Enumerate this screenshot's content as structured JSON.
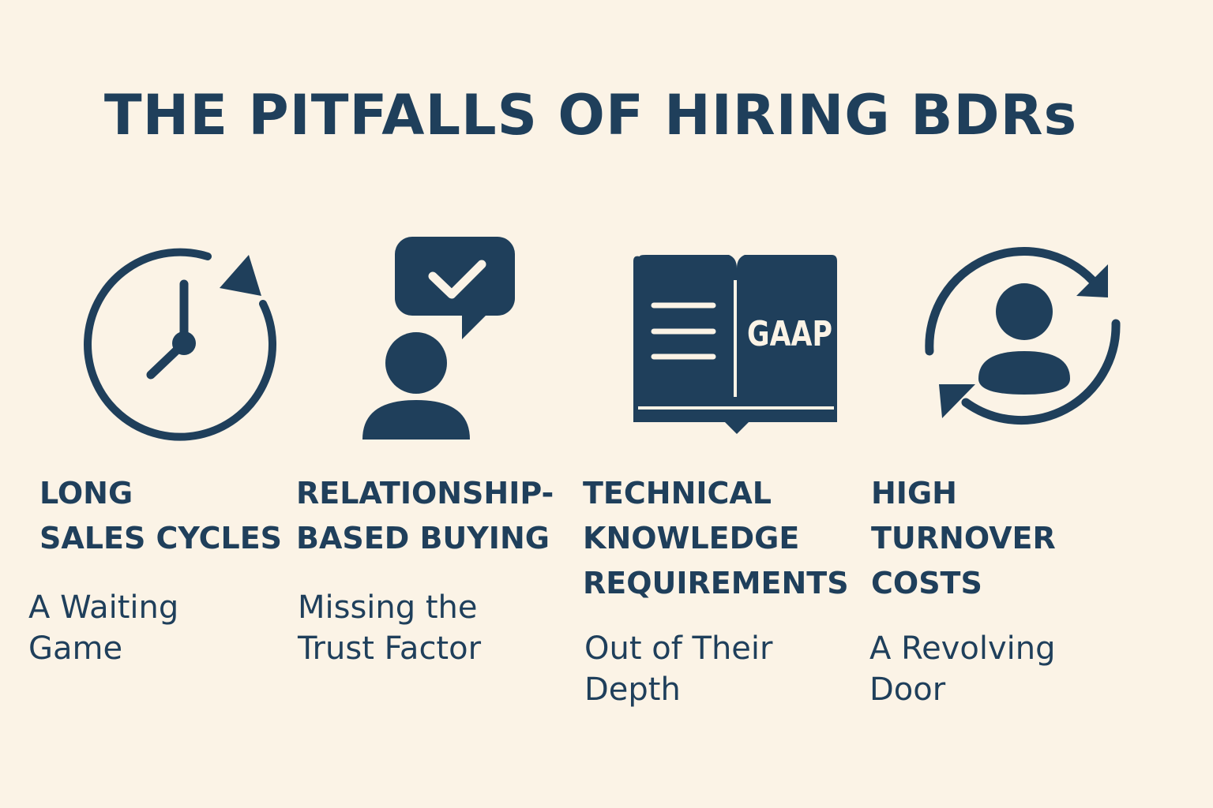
{
  "title": "THE PITFALLS OF HIRING BDRs",
  "colors": {
    "primary": "#1f3f5b",
    "background": "#fbf3e6"
  },
  "items": [
    {
      "icon": "clock-cycle-icon",
      "heading": "LONG\nSALES CYCLES",
      "subtitle": "A Waiting\nGame"
    },
    {
      "icon": "person-chat-check-icon",
      "heading": "RELATIONSHIP-\nBASED BUYING",
      "subtitle": "Missing the\nTrust Factor"
    },
    {
      "icon": "open-book-icon",
      "book_label": "GAAP",
      "heading": "TECHNICAL\nKNOWLEDGE\nREQUIREMENTS",
      "subtitle": "Out of Their\nDepth"
    },
    {
      "icon": "person-revolving-icon",
      "heading": "HIGH\nTURNOVER\nCOSTS",
      "subtitle": "A Revolving\nDoor"
    }
  ]
}
